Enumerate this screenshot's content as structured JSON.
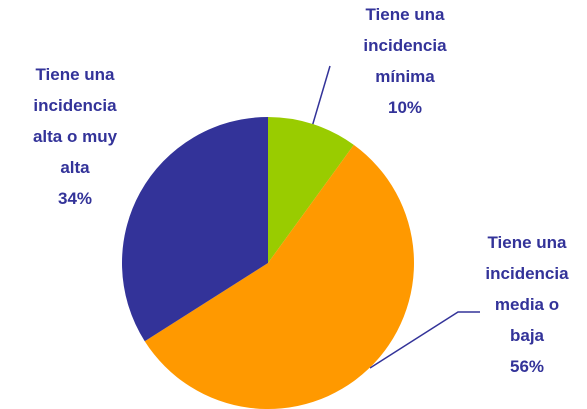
{
  "chart_data": {
    "type": "pie",
    "categories": [
      "Tiene una incidencia mínima",
      "Tiene una incidencia media o baja",
      "Tiene una incidencia alta o muy alta"
    ],
    "values": [
      10,
      56,
      34
    ],
    "value_labels": [
      "10%",
      "56%",
      "34%"
    ],
    "colors": [
      "#99cc00",
      "#ff9900",
      "#333399"
    ]
  }
}
